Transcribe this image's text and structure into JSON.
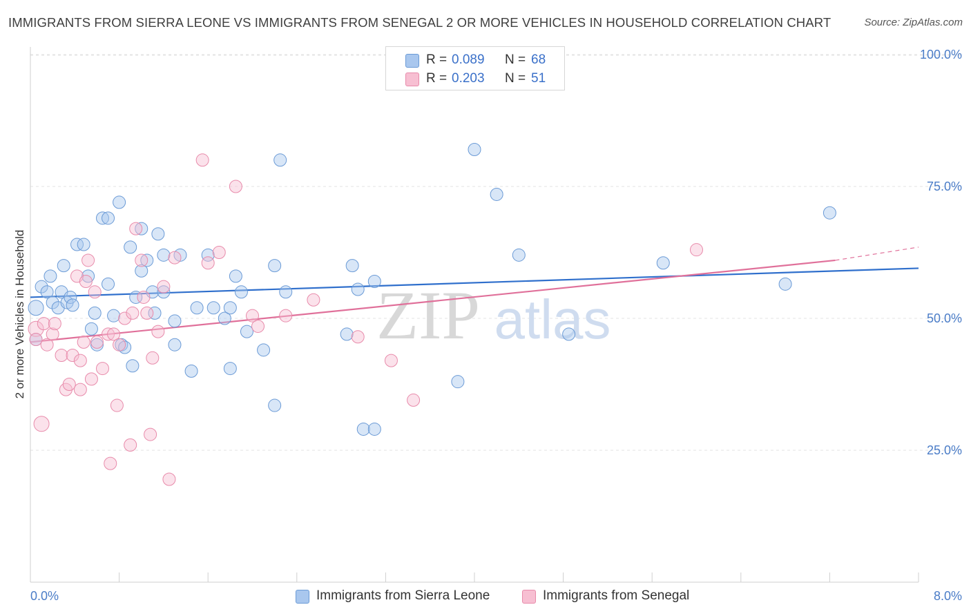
{
  "title": "IMMIGRANTS FROM SIERRA LEONE VS IMMIGRANTS FROM SENEGAL 2 OR MORE VEHICLES IN HOUSEHOLD CORRELATION CHART",
  "source": "Source: ZipAtlas.com",
  "watermark": {
    "zip": "ZIP",
    "atlas": "atlas"
  },
  "legend_top": [
    {
      "r_label": "R =",
      "r_value": "0.089",
      "n_label": "N =",
      "n_value": "68",
      "color": "#a9c7ee",
      "edge": "#6a9ad6"
    },
    {
      "r_label": "R =",
      "r_value": "0.203",
      "n_label": "N =",
      "n_value": "51",
      "color": "#f7bfd2",
      "edge": "#e88aaa"
    }
  ],
  "chart_data": {
    "type": "scatter",
    "title": "IMMIGRANTS FROM SIERRA LEONE VS IMMIGRANTS FROM SENEGAL 2 OR MORE VEHICLES IN HOUSEHOLD CORRELATION CHART",
    "xlabel": "",
    "ylabel": "2 or more Vehicles in Household",
    "xlim": [
      0,
      8
    ],
    "ylim": [
      0,
      105
    ],
    "x_tick_labels": [
      "0.0%",
      "8.0%"
    ],
    "y_ticks": [
      25,
      50,
      75,
      100
    ],
    "y_tick_labels": [
      "25.0%",
      "50.0%",
      "75.0%",
      "100.0%"
    ],
    "grid": "horizontal dashed",
    "legend_position": "bottom",
    "series": [
      {
        "name": "Immigrants from Sierra Leone",
        "color": "#6a9ad6",
        "fill": "#a9c7ee",
        "line_color": "#2f6fcc",
        "trend": [
          [
            0,
            54.0
          ],
          [
            8,
            59.5
          ]
        ],
        "points": [
          [
            0.05,
            52.0
          ],
          [
            0.05,
            46.0
          ],
          [
            0.1,
            56.0
          ],
          [
            0.15,
            55.0
          ],
          [
            0.18,
            58.0
          ],
          [
            0.2,
            53.0
          ],
          [
            0.25,
            52.0
          ],
          [
            0.28,
            55.0
          ],
          [
            0.3,
            60.0
          ],
          [
            0.33,
            53.0
          ],
          [
            0.36,
            54.0
          ],
          [
            0.38,
            52.5
          ],
          [
            0.42,
            64.0
          ],
          [
            0.48,
            64.0
          ],
          [
            0.52,
            58.0
          ],
          [
            0.55,
            48.0
          ],
          [
            0.58,
            51.0
          ],
          [
            0.6,
            45.0
          ],
          [
            0.65,
            69.0
          ],
          [
            0.7,
            56.5
          ],
          [
            0.7,
            69.0
          ],
          [
            0.75,
            50.5
          ],
          [
            0.8,
            72.0
          ],
          [
            0.82,
            45.0
          ],
          [
            0.85,
            44.5
          ],
          [
            0.9,
            63.5
          ],
          [
            0.92,
            41.0
          ],
          [
            0.95,
            54.0
          ],
          [
            1.0,
            67.0
          ],
          [
            1.0,
            59.0
          ],
          [
            1.05,
            61.0
          ],
          [
            1.1,
            55.0
          ],
          [
            1.12,
            51.0
          ],
          [
            1.15,
            66.0
          ],
          [
            1.2,
            55.0
          ],
          [
            1.2,
            62.0
          ],
          [
            1.3,
            45.0
          ],
          [
            1.3,
            49.5
          ],
          [
            1.35,
            62.0
          ],
          [
            1.45,
            40.0
          ],
          [
            1.5,
            52.0
          ],
          [
            1.6,
            62.0
          ],
          [
            1.65,
            52.0
          ],
          [
            1.75,
            50.0
          ],
          [
            1.8,
            52.0
          ],
          [
            1.8,
            40.5
          ],
          [
            1.85,
            58.0
          ],
          [
            1.9,
            55.0
          ],
          [
            1.95,
            47.5
          ],
          [
            2.1,
            44.0
          ],
          [
            2.2,
            60.0
          ],
          [
            2.25,
            80.0
          ],
          [
            2.2,
            33.5
          ],
          [
            2.3,
            55.0
          ],
          [
            2.85,
            47.0
          ],
          [
            2.9,
            60.0
          ],
          [
            2.95,
            55.5
          ],
          [
            3.0,
            29.0
          ],
          [
            3.1,
            29.0
          ],
          [
            3.1,
            57.0
          ],
          [
            3.85,
            38.0
          ],
          [
            4.0,
            82.0
          ],
          [
            4.2,
            73.5
          ],
          [
            4.4,
            62.0
          ],
          [
            4.85,
            47.0
          ],
          [
            5.7,
            60.5
          ],
          [
            6.8,
            56.5
          ],
          [
            7.2,
            70.0
          ]
        ]
      },
      {
        "name": "Immigrants from Senegal",
        "color": "#e88aaa",
        "fill": "#f7bfd2",
        "line_color": "#e0709a",
        "trend": [
          [
            0,
            45.5
          ],
          [
            7.25,
            61.0
          ]
        ],
        "trend_extension": [
          [
            7.25,
            61.0
          ],
          [
            8,
            63.5
          ]
        ],
        "points": [
          [
            0.05,
            48.0
          ],
          [
            0.05,
            46.0
          ],
          [
            0.1,
            30.0
          ],
          [
            0.12,
            49.0
          ],
          [
            0.15,
            45.0
          ],
          [
            0.2,
            47.0
          ],
          [
            0.22,
            49.0
          ],
          [
            0.28,
            43.0
          ],
          [
            0.32,
            36.5
          ],
          [
            0.35,
            37.5
          ],
          [
            0.38,
            43.0
          ],
          [
            0.42,
            58.0
          ],
          [
            0.45,
            42.0
          ],
          [
            0.48,
            45.5
          ],
          [
            0.5,
            57.0
          ],
          [
            0.52,
            61.0
          ],
          [
            0.55,
            38.5
          ],
          [
            0.58,
            55.0
          ],
          [
            0.6,
            45.5
          ],
          [
            0.65,
            40.5
          ],
          [
            0.7,
            47.0
          ],
          [
            0.72,
            22.5
          ],
          [
            0.75,
            47.0
          ],
          [
            0.78,
            33.5
          ],
          [
            0.8,
            45.0
          ],
          [
            0.85,
            50.0
          ],
          [
            0.9,
            26.0
          ],
          [
            0.92,
            51.0
          ],
          [
            0.95,
            67.0
          ],
          [
            1.0,
            61.0
          ],
          [
            1.02,
            54.0
          ],
          [
            1.05,
            51.0
          ],
          [
            1.08,
            28.0
          ],
          [
            1.1,
            42.5
          ],
          [
            1.15,
            47.5
          ],
          [
            1.2,
            56.0
          ],
          [
            1.25,
            19.5
          ],
          [
            1.3,
            61.5
          ],
          [
            1.55,
            80.0
          ],
          [
            1.6,
            60.5
          ],
          [
            1.7,
            62.5
          ],
          [
            1.85,
            75.0
          ],
          [
            2.0,
            50.5
          ],
          [
            2.05,
            48.5
          ],
          [
            2.3,
            50.5
          ],
          [
            2.55,
            53.5
          ],
          [
            2.95,
            46.5
          ],
          [
            3.25,
            42.0
          ],
          [
            3.45,
            34.5
          ],
          [
            6.0,
            63.0
          ],
          [
            0.45,
            36.5
          ]
        ]
      }
    ]
  },
  "legend_bottom": [
    {
      "label": "Immigrants from Sierra Leone",
      "color": "#a9c7ee",
      "edge": "#6a9ad6"
    },
    {
      "label": "Immigrants from Senegal",
      "color": "#f7bfd2",
      "edge": "#e88aaa"
    }
  ]
}
